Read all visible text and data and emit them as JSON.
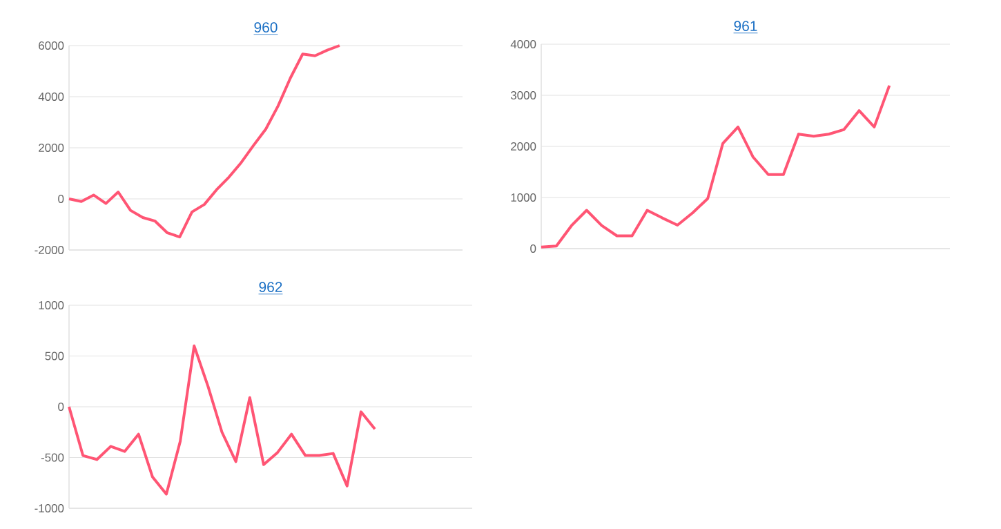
{
  "chart_data": [
    {
      "type": "line",
      "title": "960",
      "categories": [
        null,
        null,
        null,
        null,
        null,
        null,
        null,
        null,
        null,
        null,
        null,
        null,
        null,
        null,
        null,
        null,
        null,
        null,
        null,
        null,
        null,
        null,
        null,
        null,
        null,
        null,
        null,
        null,
        null,
        null,
        null,
        null,
        null
      ],
      "ylim": [
        -2000,
        6000
      ],
      "yticks": [
        -2000,
        0,
        2000,
        4000,
        6000
      ],
      "grid": "y",
      "tick_labels": "y",
      "series": [
        {
          "color": "#ff5574",
          "values": [
            0,
            -100,
            150,
            -180,
            270,
            -450,
            -730,
            -870,
            -1330,
            -1490,
            -510,
            -220,
            360,
            850,
            1420,
            2090,
            2730,
            3640,
            4730,
            5670,
            5600,
            5820,
            6000,
            null,
            null,
            null,
            null,
            null,
            null,
            null,
            null,
            null,
            null
          ]
        }
      ]
    },
    {
      "type": "line",
      "title": "961",
      "categories": [
        null,
        null,
        null,
        null,
        null,
        null,
        null,
        null,
        null,
        null,
        null,
        null,
        null,
        null,
        null,
        null,
        null,
        null,
        null,
        null,
        null,
        null,
        null,
        null,
        null,
        null,
        null,
        null
      ],
      "ylim": [
        0,
        4000
      ],
      "yticks": [
        0,
        1000,
        2000,
        3000,
        4000
      ],
      "grid": "y",
      "tick_labels": "y",
      "series": [
        {
          "color": "#ff5574",
          "values": [
            30,
            50,
            450,
            750,
            450,
            250,
            250,
            750,
            600,
            460,
            700,
            980,
            2060,
            2380,
            1790,
            1450,
            1450,
            2240,
            2200,
            2240,
            2330,
            2700,
            2380,
            3190,
            null,
            null,
            null,
            null
          ]
        }
      ]
    },
    {
      "type": "line",
      "title": "962",
      "categories": [
        null,
        null,
        null,
        null,
        null,
        null,
        null,
        null,
        null,
        null,
        null,
        null,
        null,
        null,
        null,
        null,
        null,
        null,
        null,
        null,
        null,
        null,
        null,
        null,
        null,
        null,
        null,
        null,
        null,
        null
      ],
      "ylim": [
        -1000,
        1000
      ],
      "yticks": [
        -1000,
        -500,
        0,
        500,
        1000
      ],
      "grid": "y",
      "tick_labels": "y",
      "series": [
        {
          "color": "#ff5574",
          "values": [
            0,
            -480,
            -520,
            -390,
            -440,
            -270,
            -690,
            -860,
            -340,
            600,
            200,
            -250,
            -540,
            90,
            -570,
            -450,
            -270,
            -480,
            -480,
            -460,
            -780,
            -50,
            -220,
            null,
            null,
            null,
            null,
            null,
            null,
            null
          ]
        }
      ]
    }
  ]
}
